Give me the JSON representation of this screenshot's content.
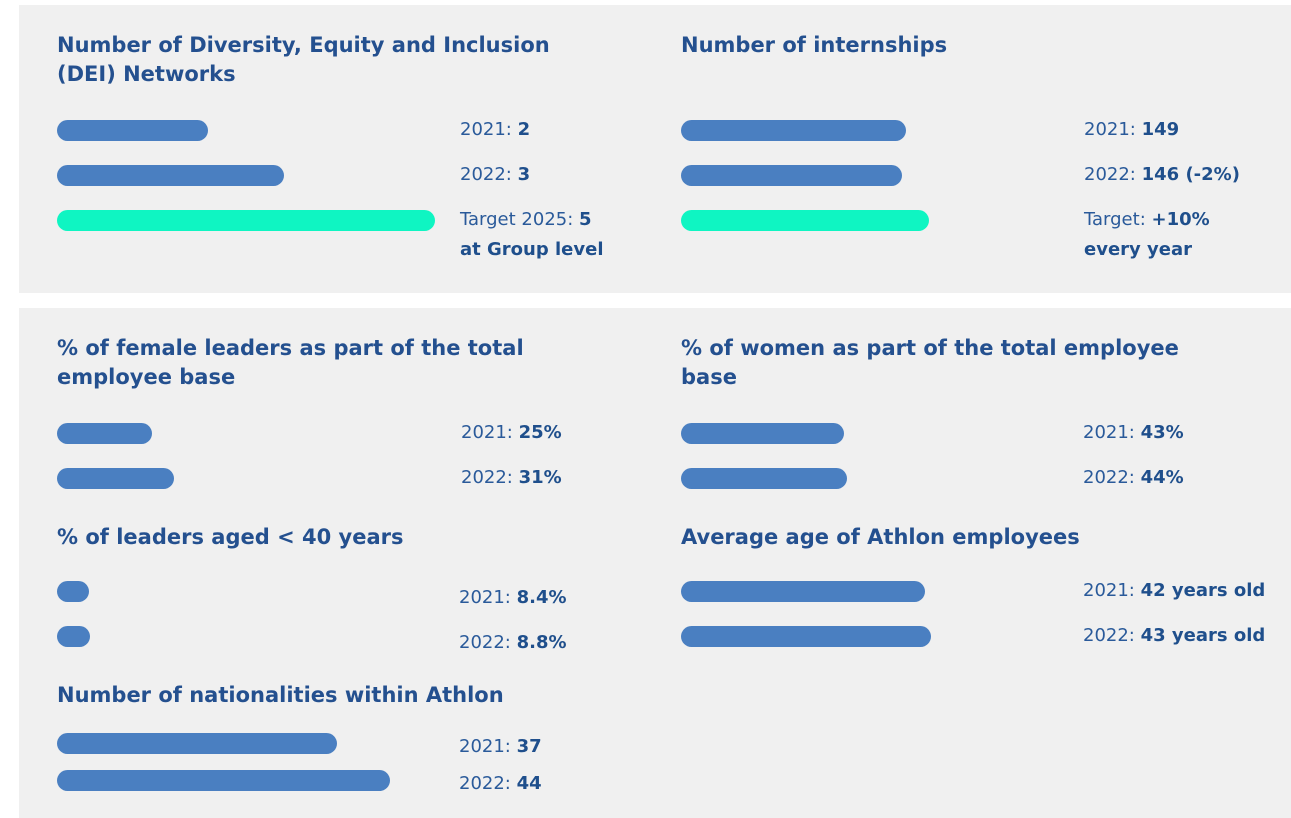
{
  "chart_data": [
    {
      "type": "bar",
      "title": "Number of Diversity, Equity and Inclusion (DEI) Networks",
      "categories": [
        "2021:",
        "2022:",
        "Target 2025:"
      ],
      "values": [
        2,
        3,
        5
      ],
      "value_labels": [
        "2",
        "3",
        "5 at Group level"
      ],
      "colors": [
        "#4a7fc1",
        "#4a7fc1",
        "#0ff5c2"
      ],
      "xlim": [
        0,
        5
      ]
    },
    {
      "type": "bar",
      "title": "Number of internships",
      "categories": [
        "2021:",
        "2022:",
        "Target:"
      ],
      "values": [
        149,
        146,
        164
      ],
      "value_labels": [
        "149",
        "146 (-2%)",
        "+10% every year"
      ],
      "colors": [
        "#4a7fc1",
        "#4a7fc1",
        "#0ff5c2"
      ],
      "xlim": [
        0,
        250
      ]
    },
    {
      "type": "bar",
      "title": "% of female leaders as part of the total employee base",
      "categories": [
        "2021:",
        "2022:"
      ],
      "values": [
        25,
        31
      ],
      "value_labels": [
        "25%",
        "31%"
      ],
      "colors": [
        "#4a7fc1",
        "#4a7fc1"
      ],
      "xlim": [
        0,
        100
      ]
    },
    {
      "type": "bar",
      "title": "% of women as part of the total employee base",
      "categories": [
        "2021:",
        "2022:"
      ],
      "values": [
        43,
        44
      ],
      "value_labels": [
        "43%",
        "44%"
      ],
      "colors": [
        "#4a7fc1",
        "#4a7fc1"
      ],
      "xlim": [
        0,
        100
      ]
    },
    {
      "type": "bar",
      "title": "% of leaders aged < 40 years",
      "categories": [
        "2021:",
        "2022:"
      ],
      "values": [
        8.4,
        8.8
      ],
      "value_labels": [
        "8.4%",
        "8.8%"
      ],
      "colors": [
        "#4a7fc1",
        "#4a7fc1"
      ],
      "xlim": [
        0,
        100
      ]
    },
    {
      "type": "bar",
      "title": "Average age of Athlon employees",
      "categories": [
        "2021:",
        "2022:"
      ],
      "values": [
        42,
        43
      ],
      "value_labels": [
        "42 years old",
        "43 years old"
      ],
      "colors": [
        "#4a7fc1",
        "#4a7fc1"
      ],
      "xlim": [
        0,
        65
      ]
    },
    {
      "type": "bar",
      "title": "Number of nationalities within Athlon",
      "categories": [
        "2021:",
        "2022:"
      ],
      "values": [
        37,
        44
      ],
      "colors": [
        "#4a7fc1",
        "#4a7fc1"
      ],
      "xlim": [
        0,
        50
      ]
    }
  ]
}
